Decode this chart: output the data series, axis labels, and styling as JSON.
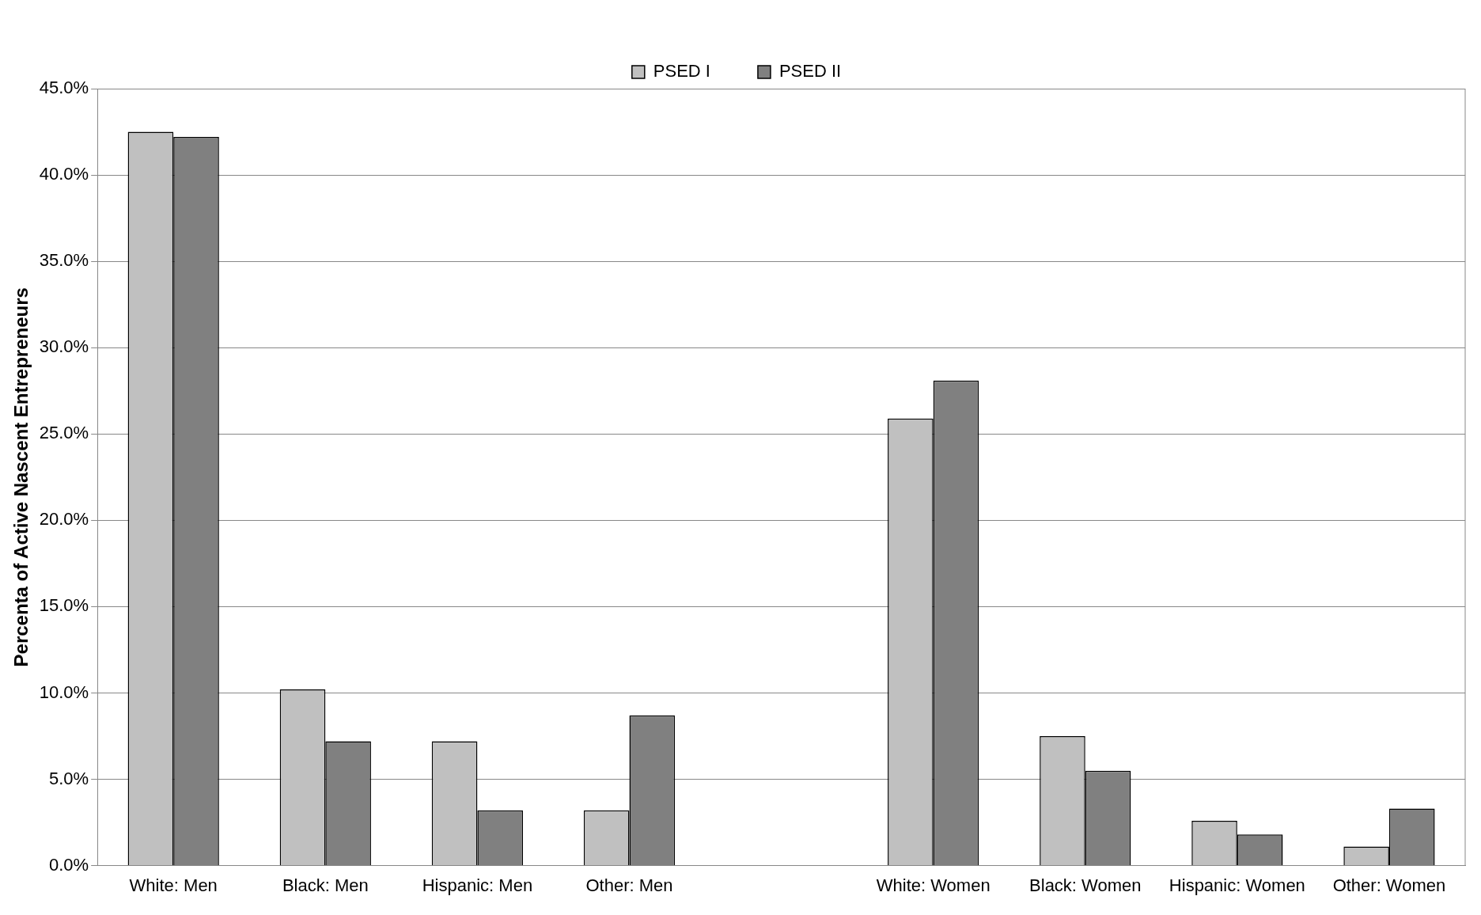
{
  "chart_data": {
    "type": "bar",
    "ylabel": "Percenta of Active Nascent Entrepreneurs",
    "categories": [
      "White: Men",
      "Black: Men",
      "Hispanic: Men",
      "Other: Men",
      null,
      "White: Women",
      "Black: Women",
      "Hispanic: Women",
      "Other: Women"
    ],
    "series": [
      {
        "name": "PSED I",
        "color": "#c0c0c0",
        "values": [
          42.5,
          10.2,
          7.2,
          3.2,
          null,
          25.9,
          7.5,
          2.6,
          1.1
        ]
      },
      {
        "name": "PSED II",
        "color": "#808080",
        "values": [
          42.2,
          7.2,
          3.2,
          8.7,
          null,
          28.1,
          5.5,
          1.8,
          3.3
        ]
      }
    ],
    "ylim": [
      0,
      45
    ],
    "yticks": [
      {
        "value": 0,
        "label": "0.0%"
      },
      {
        "value": 5,
        "label": "5.0%"
      },
      {
        "value": 10,
        "label": "10.0%"
      },
      {
        "value": 15,
        "label": "15.0%"
      },
      {
        "value": 20,
        "label": "20.0%"
      },
      {
        "value": 25,
        "label": "25.0%"
      },
      {
        "value": 30,
        "label": "30.0%"
      },
      {
        "value": 35,
        "label": "35.0%"
      },
      {
        "value": 40,
        "label": "40.0%"
      },
      {
        "value": 45,
        "label": "45.0%"
      }
    ],
    "grid": "y",
    "legend": "top"
  }
}
